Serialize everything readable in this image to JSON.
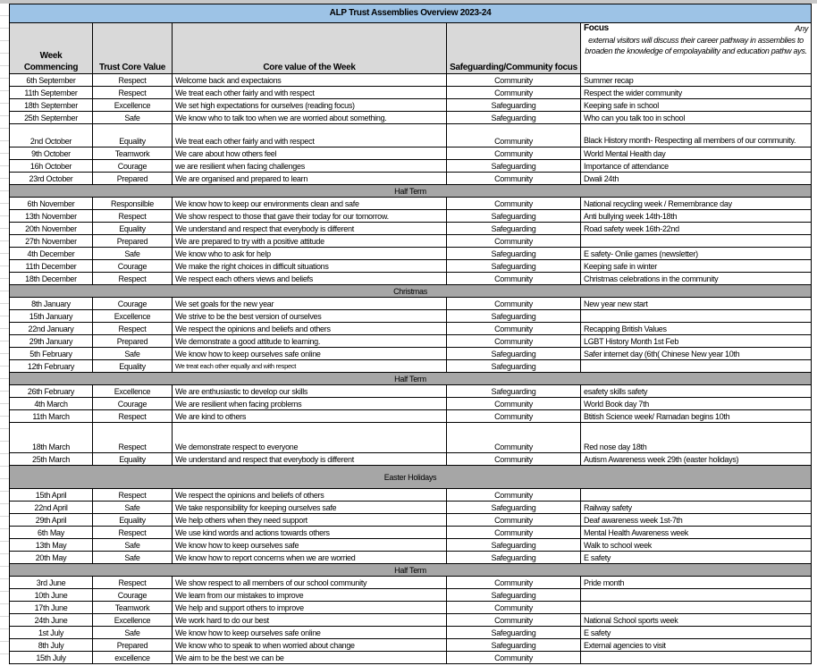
{
  "title": "ALP Trust Assemblies Overview 2023-24",
  "headers": {
    "week": "Week Commencing",
    "value": "Trust Core Value",
    "core": "Core value of the Week",
    "focus_type": "Safeguarding/Community focus",
    "focus_label": "Focus",
    "focus_any": "Any",
    "focus_note": "external visitors will discuss their career pathway in assemblies to broaden the knowledge of empolayability and education pathw ays."
  },
  "rows": [
    {
      "week": "6th September",
      "value": "Respect",
      "core": "Welcome back and expectaions",
      "type": "Community",
      "focus": "Summer recap"
    },
    {
      "week": "11th September",
      "value": "Respect",
      "core": "We treat each other fairly and with respect",
      "type": "Community",
      "focus": "Respect the wider community"
    },
    {
      "week": "18th September",
      "value": "Excellence",
      "core": "We set high expectations for ourselves (reading focus)",
      "type": "Safeguarding",
      "focus": "Keeping safe in school"
    },
    {
      "week": "25th September",
      "value": "Safe",
      "core": "We know who to talk too when we are worried about something.",
      "type": "Safeguarding",
      "focus": "Who can you talk too in school"
    },
    {
      "week": "2nd October",
      "value": "Equality",
      "core": "We treat each other fairly and with respect",
      "type": "Community",
      "focus": "Black History month- Respecting all members of our community.",
      "size": "tall"
    },
    {
      "week": "9th October",
      "value": "Teamwork",
      "core": "We care about how others feel",
      "type": "Community",
      "focus": "World Mental Health day"
    },
    {
      "week": "16h October",
      "value": "Courage",
      "core": "we are resilient when facing challenges",
      "type": "Safeguarding",
      "focus": "Importance of attendance"
    },
    {
      "week": "23rd October",
      "value": "Prepared",
      "core": "We are organised and prepared to learn",
      "type": "Community",
      "focus": "Dwali 24th"
    },
    {
      "section": "Half Term"
    },
    {
      "week": "6th November",
      "value": "Responsilble",
      "core": "We know how to keep our environments clean and safe",
      "type": "Community",
      "focus": "National recycling week / Remembrance day"
    },
    {
      "week": "13th November",
      "value": "Respect",
      "core": "We show respect to those that gave their today for our tomorrow.",
      "type": "Safeguarding",
      "focus": "Anti bullying week 14th-18th"
    },
    {
      "week": "20th November",
      "value": "Equality",
      "core": "We understand and respect that everybody is different",
      "type": "Safeguarding",
      "focus": "Road safety week 16th-22nd"
    },
    {
      "week": "27th November",
      "value": "Prepared",
      "core": "We are prepared to try with a positive attitude",
      "type": "Community",
      "focus": ""
    },
    {
      "week": "4th December",
      "value": "Safe",
      "core": "We know who to ask for help",
      "type": "Safeguarding",
      "focus": "E safety- Onlie games (newsletter)"
    },
    {
      "week": "11th December",
      "value": "Courage",
      "core": "We make the right choices in difficult situations",
      "type": "Safeguarding",
      "focus": "Keeping safe in winter"
    },
    {
      "week": "18th December",
      "value": "Respect",
      "core": "We respect each others views and beliefs",
      "type": "Community",
      "focus": "Christmas celebrations in the community"
    },
    {
      "section": "Christmas"
    },
    {
      "week": "8th January",
      "value": "Courage",
      "core": "We set goals for the new year",
      "type": "Community",
      "focus": "New year new start"
    },
    {
      "week": "15th January",
      "value": "Excellence",
      "core": "We strive to be the best version of ourselves",
      "type": "Safeguarding",
      "focus": ""
    },
    {
      "week": "22nd January",
      "value": "Respect",
      "core": "We respect the opinions and beliefs and others",
      "type": "Community",
      "focus": "Recapping British Values"
    },
    {
      "week": "29th January",
      "value": "Prepared",
      "core": "We demonstrate a good attitude to learning.",
      "type": "Community",
      "focus": "LGBT History Month 1st Feb"
    },
    {
      "week": "5th February",
      "value": "Safe",
      "core": "We know how to keep ourselves safe online",
      "type": "Safeguarding",
      "focus": "Safer internet day (6th( Chinese New year 10th"
    },
    {
      "week": "12th February",
      "value": "Equality",
      "core": "We treat each other equally and with respect",
      "type": "Safeguarding",
      "focus": "",
      "small": true
    },
    {
      "section": "Half Term"
    },
    {
      "week": "26th February",
      "value": "Excellence",
      "core": "We are enthusiastic to develop our skills",
      "type": "Safeguarding",
      "focus": "esafety skills safety"
    },
    {
      "week": "4th March",
      "value": "Courage",
      "core": "We are resilient when facing problems",
      "type": "Community",
      "focus": "World Book day 7th"
    },
    {
      "week": "11th March",
      "value": "Respect",
      "core": "We are kind to others",
      "type": "Community",
      "focus": "Btitish Science week/ Ramadan begins 10th"
    },
    {
      "week": "18th March",
      "value": "Respect",
      "core": "We demonstrate respect to everyone",
      "type": "Community",
      "focus": "Red nose day 18th",
      "size": "xtall"
    },
    {
      "week": "25th March",
      "value": "Equality",
      "core": "We understand and respect that everybody is different",
      "type": "Community",
      "focus": "Autism Awareness week 29th (easter holidays)"
    },
    {
      "section": "Easter Holidays",
      "size": "tall"
    },
    {
      "week": "15th April",
      "value": "Respect",
      "core": "We respect the opinions and beliefs of others",
      "type": "Community",
      "focus": ""
    },
    {
      "week": "22nd April",
      "value": "Safe",
      "core": "We take responsibility for keeping ourselves safe",
      "type": "Safeguarding",
      "focus": "Railway safety"
    },
    {
      "week": "29th April",
      "value": "Equality",
      "core": "We help others when they need support",
      "type": "Community",
      "focus": "Deaf awareness week 1st-7th"
    },
    {
      "week": "6th May",
      "value": "Respect",
      "core": "We use kind words and actions towards others",
      "type": "Community",
      "focus": "Mental Health Awareness week"
    },
    {
      "week": "13th May",
      "value": "Safe",
      "core": "We know how to keep ourselves safe",
      "type": "Safeguarding",
      "focus": "Walk to school week"
    },
    {
      "week": "20th May",
      "value": "Safe",
      "core": "We know how to report concerns when we are worried",
      "type": "Safeguarding",
      "focus": "E safety"
    },
    {
      "section": "Half Term"
    },
    {
      "week": "3rd June",
      "value": "Respect",
      "core": "We show respect to all members of our school community",
      "type": "Community",
      "focus": "Pride month"
    },
    {
      "week": "10th June",
      "value": "Courage",
      "core": "We learn from our mistakes to improve",
      "type": "Safeguarding",
      "focus": ""
    },
    {
      "week": "17th June",
      "value": "Teamwork",
      "core": "We help and support others to improve",
      "type": "Community",
      "focus": ""
    },
    {
      "week": "24th June",
      "value": "Excellence",
      "core": "We work hard to do our best",
      "type": "Community",
      "focus": "National School sports week"
    },
    {
      "week": "1st July",
      "value": "Safe",
      "core": "We know how to keep ourselves safe online",
      "type": "Safeguarding",
      "focus": "E safety"
    },
    {
      "week": "8th July",
      "value": "Prepared",
      "core": "We know who to speak to when worried about change",
      "type": "Safeguarding",
      "focus": "External agencies to visit"
    },
    {
      "week": "15th July",
      "value": "excellence",
      "core": "We aim to be the best we can be",
      "type": "Community",
      "focus": ""
    }
  ]
}
